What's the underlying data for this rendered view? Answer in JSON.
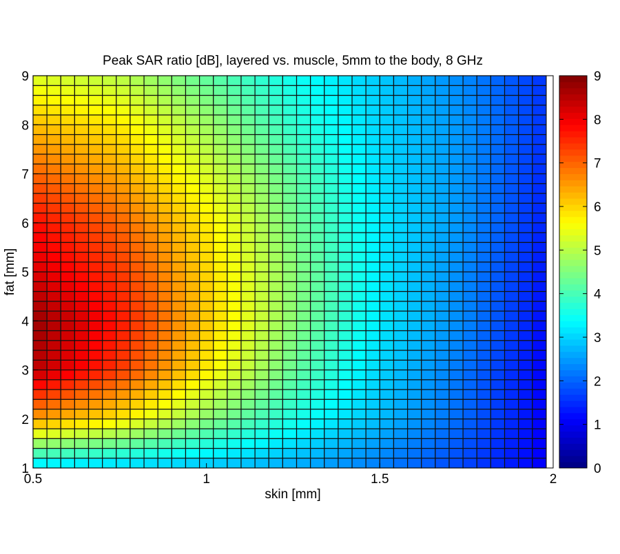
{
  "chart_data": {
    "type": "heatmap",
    "title": "Peak SAR ratio [dB], layered vs. muscle, 5mm to the body, 8 GHz",
    "xlabel": "skin [mm]",
    "ylabel": "fat [mm]",
    "xlim": [
      0.5,
      2
    ],
    "ylim": [
      1,
      9
    ],
    "xticks": [
      "0.5",
      "1",
      "1.5",
      "2"
    ],
    "xtick_values": [
      0.5,
      1,
      1.5,
      2
    ],
    "yticks": [
      "1",
      "2",
      "3",
      "4",
      "5",
      "6",
      "7",
      "8",
      "9"
    ],
    "ytick_values": [
      1,
      2,
      3,
      4,
      5,
      6,
      7,
      8,
      9
    ],
    "colorbar": {
      "clim": [
        0,
        9
      ],
      "ticks": [
        "0",
        "1",
        "2",
        "3",
        "4",
        "5",
        "6",
        "7",
        "8",
        "9"
      ],
      "tick_values": [
        0,
        1,
        2,
        3,
        4,
        5,
        6,
        7,
        8,
        9
      ],
      "colormap": "jet"
    },
    "cell_step": {
      "skin": 0.04,
      "fat": 0.2
    },
    "sample_skin": [
      0.5,
      0.75,
      1.0,
      1.25,
      1.5,
      1.75,
      2.0
    ],
    "sample_fat": [
      1,
      2,
      3,
      4,
      5,
      6,
      7,
      8,
      9
    ],
    "values": [
      [
        3.0,
        2.9,
        2.8,
        2.6,
        2.2,
        1.7,
        1.0
      ],
      [
        6.5,
        5.8,
        4.6,
        3.6,
        2.8,
        2.0,
        1.0
      ],
      [
        8.5,
        7.4,
        5.8,
        4.3,
        3.0,
        2.1,
        1.0
      ],
      [
        8.8,
        7.7,
        6.1,
        4.6,
        3.2,
        2.3,
        1.1
      ],
      [
        8.2,
        7.4,
        6.0,
        4.6,
        3.2,
        2.3,
        1.2
      ],
      [
        7.8,
        7.0,
        5.8,
        4.4,
        3.2,
        2.4,
        1.3
      ],
      [
        7.0,
        6.4,
        5.3,
        4.2,
        3.1,
        2.4,
        1.4
      ],
      [
        6.2,
        5.8,
        4.8,
        3.8,
        3.0,
        2.4,
        1.5
      ],
      [
        5.3,
        5.0,
        4.2,
        3.5,
        2.9,
        2.3,
        1.5
      ]
    ]
  }
}
